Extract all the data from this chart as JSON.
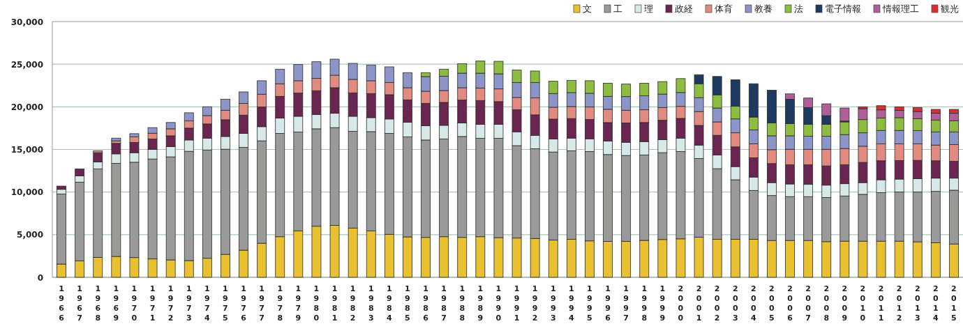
{
  "chart_data": {
    "type": "bar",
    "stacked": true,
    "legend": "top right",
    "grid": "y",
    "categories": [
      "1966",
      "1967",
      "1968",
      "1969",
      "1970",
      "1971",
      "1972",
      "1973",
      "1974",
      "1975",
      "1976",
      "1977",
      "1978",
      "1979",
      "1980",
      "1981",
      "1982",
      "1983",
      "1984",
      "1985",
      "1986",
      "1987",
      "1988",
      "1989",
      "1990",
      "1991",
      "1992",
      "1993",
      "1994",
      "1995",
      "1996",
      "1997",
      "1998",
      "1999",
      "2000",
      "2001",
      "2002",
      "2003",
      "2004",
      "2005",
      "2006",
      "2007",
      "2008",
      "2009",
      "2010",
      "2011",
      "2012",
      "2013",
      "2014",
      "2015"
    ],
    "ylim": [
      0,
      30000
    ],
    "yticks": [
      0,
      {
        "value": 5000,
        "label": "5,000"
      },
      {
        "value": 10000,
        "label": "10,000"
      },
      {
        "value": 15000,
        "label": "15,000"
      },
      {
        "value": 20000,
        "label": "20,000"
      },
      {
        "value": 25000,
        "label": "25,000"
      },
      {
        "value": 30000,
        "label": "30,000"
      }
    ],
    "series": [
      {
        "name": "文",
        "color": "#e8c030",
        "values": [
          1550,
          1930,
          2340,
          2450,
          2310,
          2150,
          2040,
          1960,
          2230,
          2690,
          3180,
          4000,
          4760,
          5440,
          5990,
          6100,
          5770,
          5440,
          5040,
          4740,
          4680,
          4760,
          4680,
          4760,
          4650,
          4600,
          4550,
          4360,
          4460,
          4270,
          4220,
          4220,
          4330,
          4430,
          4510,
          4700,
          4460,
          4460,
          4460,
          4320,
          4320,
          4320,
          4180,
          4240,
          4240,
          4240,
          4240,
          4160,
          4050,
          3910
        ]
      },
      {
        "name": "工",
        "color": "#9a9a98",
        "values": [
          8220,
          9230,
          10370,
          10920,
          11190,
          11730,
          12090,
          12820,
          12710,
          12340,
          12060,
          12010,
          12120,
          11600,
          11430,
          11460,
          11350,
          11650,
          11840,
          11730,
          11430,
          11460,
          11840,
          11540,
          11650,
          10840,
          10530,
          10340,
          10380,
          10480,
          10180,
          10070,
          10020,
          10190,
          10240,
          9240,
          8280,
          6980,
          5730,
          5270,
          5140,
          5140,
          5170,
          5300,
          5490,
          5700,
          5760,
          5840,
          6030,
          6310
        ]
      },
      {
        "name": "理",
        "color": "#d6e8e8",
        "values": [
          550,
          740,
          820,
          1110,
          1120,
          1120,
          1200,
          1330,
          1390,
          1490,
          1640,
          1660,
          1790,
          1850,
          1690,
          1680,
          1770,
          1640,
          1690,
          1710,
          1660,
          1610,
          1580,
          1640,
          1640,
          1630,
          1580,
          1520,
          1490,
          1500,
          1580,
          1550,
          1570,
          1520,
          1580,
          1570,
          1610,
          1550,
          1570,
          1520,
          1490,
          1440,
          1460,
          1440,
          1380,
          1500,
          1520,
          1570,
          1550,
          1410
        ]
      },
      {
        "name": "政経",
        "color": "#6a2650",
        "values": [
          380,
          810,
          1090,
          1230,
          1200,
          1220,
          1270,
          1390,
          1660,
          1960,
          2150,
          2310,
          2560,
          2720,
          2780,
          3000,
          2750,
          2830,
          2850,
          2640,
          2640,
          2690,
          2700,
          2800,
          2670,
          2580,
          2400,
          2340,
          2290,
          2260,
          2170,
          2260,
          2240,
          2280,
          2310,
          2310,
          2310,
          2310,
          2260,
          2230,
          2250,
          2300,
          2260,
          2220,
          2370,
          2230,
          2170,
          2150,
          2040,
          1980
        ]
      },
      {
        "name": "体育",
        "color": "#e08a80",
        "values": [
          null,
          null,
          220,
          300,
          650,
          680,
          820,
          850,
          980,
          1120,
          1360,
          1500,
          1470,
          1450,
          1440,
          1470,
          1580,
          1500,
          1440,
          1420,
          1420,
          1390,
          1440,
          1470,
          1490,
          1450,
          1980,
          1390,
          1410,
          1470,
          1560,
          1500,
          1490,
          1500,
          1410,
          1630,
          1570,
          1650,
          1630,
          1630,
          1820,
          1820,
          1950,
          1910,
          1900,
          1980,
          1960,
          1930,
          1840,
          1960
        ]
      },
      {
        "name": "教養",
        "color": "#8c94c8",
        "values": [
          null,
          null,
          null,
          320,
          380,
          660,
          740,
          950,
          1040,
          1300,
          1360,
          1580,
          1720,
          1900,
          1960,
          1880,
          1880,
          1850,
          1830,
          1770,
          1720,
          1690,
          1710,
          1740,
          1770,
          1760,
          1800,
          1610,
          1640,
          1610,
          1520,
          1600,
          1640,
          1570,
          1630,
          1630,
          1630,
          1630,
          1630,
          1630,
          1580,
          1530,
          1530,
          1630,
          1570,
          1580,
          1580,
          1550,
          1550,
          1490
        ]
      },
      {
        "name": "法",
        "color": "#8cbc40",
        "values": [
          null,
          null,
          null,
          null,
          null,
          null,
          null,
          null,
          null,
          null,
          null,
          null,
          null,
          null,
          null,
          null,
          null,
          null,
          null,
          null,
          460,
          820,
          1120,
          1420,
          1470,
          1450,
          1360,
          1440,
          1440,
          1470,
          1530,
          1470,
          1470,
          1470,
          1630,
          1630,
          1550,
          1500,
          1520,
          1520,
          1440,
          1410,
          1410,
          1490,
          1550,
          1460,
          1490,
          1410,
          1390,
          1310
        ]
      },
      {
        "name": "電子情報",
        "color": "#1e3a60",
        "values": [
          null,
          null,
          null,
          null,
          null,
          null,
          null,
          null,
          null,
          null,
          null,
          null,
          null,
          null,
          null,
          null,
          null,
          null,
          null,
          null,
          null,
          null,
          null,
          null,
          null,
          null,
          null,
          null,
          null,
          null,
          null,
          null,
          null,
          null,
          null,
          1060,
          2150,
          3100,
          3910,
          3830,
          2850,
          1960,
          1000,
          100,
          null,
          null,
          null,
          null,
          null,
          null
        ]
      },
      {
        "name": "情報理工",
        "color": "#b06098",
        "values": [
          null,
          null,
          null,
          null,
          null,
          null,
          null,
          null,
          null,
          null,
          null,
          null,
          null,
          null,
          null,
          null,
          null,
          null,
          null,
          null,
          null,
          null,
          null,
          null,
          null,
          null,
          null,
          null,
          null,
          null,
          null,
          null,
          null,
          null,
          null,
          null,
          null,
          null,
          null,
          null,
          630,
          1110,
          1390,
          1530,
          1280,
          950,
          870,
          840,
          810,
          870
        ]
      },
      {
        "name": "観光",
        "color": "#d83030",
        "values": [
          null,
          null,
          null,
          null,
          null,
          null,
          null,
          null,
          null,
          null,
          null,
          null,
          null,
          null,
          null,
          null,
          null,
          null,
          null,
          null,
          null,
          null,
          null,
          null,
          null,
          null,
          null,
          null,
          null,
          null,
          null,
          null,
          null,
          null,
          null,
          null,
          null,
          null,
          null,
          null,
          null,
          null,
          null,
          null,
          220,
          490,
          410,
          470,
          440,
          460
        ]
      }
    ]
  }
}
